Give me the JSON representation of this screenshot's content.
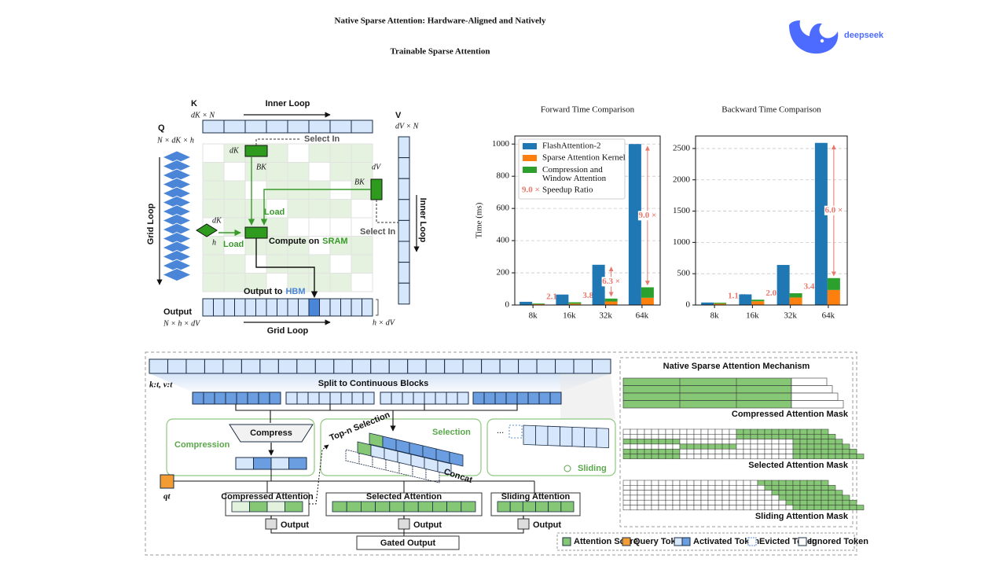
{
  "header": {
    "title_line1": "Native Sparse Attention: Hardware-Aligned and Natively",
    "title_line2": "Trainable Sparse Attention",
    "logo": "deepseek"
  },
  "kernel": {
    "k": "K",
    "k_dim": "dK × N",
    "inner_loop_top": "Inner Loop",
    "q": "Q",
    "q_dim": "N × dK × h",
    "select_in_k": "Select In",
    "dk_block": "dK",
    "bk_block": "BK",
    "dv_block": "dV",
    "bk_v": "BK",
    "v": "V",
    "v_dim": "dV × N",
    "inner_loop_side": "Inner Loop",
    "grid_loop_side": "Grid Loop",
    "load_kv": "Load",
    "dk_q": "dK",
    "h_q": "h",
    "load_q": "Load",
    "compute": "Compute on",
    "sram": "SRAM",
    "output_to": "Output to",
    "hbm": "HBM",
    "select_in_v": "Select In",
    "output": "Output",
    "output_dim": "N × h × dV",
    "grid_loop_bottom": "Grid Loop",
    "hd": "h × dV"
  },
  "chart_data": [
    {
      "type": "bar",
      "title": "Forward Time Comparison",
      "ylabel": "Time (ms)",
      "categories": [
        "8k",
        "16k",
        "32k",
        "64k"
      ],
      "series": [
        {
          "name": "FlashAttention-2",
          "color": "#1f77b4",
          "values": [
            20,
            65,
            250,
            1000
          ]
        },
        {
          "name": "Sparse Attention Kernel",
          "color": "#ff7f0e",
          "values": [
            5,
            8,
            22,
            45
          ]
        },
        {
          "name": "Compression and Window Attention",
          "color": "#2ca02c",
          "values": [
            4,
            9,
            18,
            65
          ]
        }
      ],
      "speedup": {
        "name": "Speedup Ratio",
        "color": "#e8776c",
        "values": [
          2.1,
          3.8,
          6.3,
          9.0
        ],
        "value_labels": [
          "2.1 ×",
          "3.8 ×",
          "6.3 ×",
          "9.0 ×"
        ]
      },
      "ylim": [
        0,
        1050
      ],
      "yticks": [
        0,
        200,
        400,
        600,
        800,
        1000
      ],
      "grid": true,
      "legend": "upper left"
    },
    {
      "type": "bar",
      "title": "Backward Time Comparison",
      "categories": [
        "8k",
        "16k",
        "32k",
        "64k"
      ],
      "series": [
        {
          "color": "#1f77b4",
          "values": [
            40,
            170,
            640,
            2590
          ]
        },
        {
          "color": "#ff7f0e",
          "values": [
            20,
            60,
            120,
            240
          ]
        },
        {
          "color": "#2ca02c",
          "values": [
            16,
            25,
            68,
            190
          ]
        }
      ],
      "speedup": {
        "color": "#e8776c",
        "values": [
          1.1,
          2.0,
          3.4,
          6.0
        ],
        "value_labels": [
          "1.1 ×",
          "2.0 ×",
          "3.4 ×",
          "6.0 ×"
        ]
      },
      "ylim": [
        0,
        2700
      ],
      "yticks": [
        0,
        500,
        1000,
        1500,
        2000,
        2500
      ],
      "grid": true
    }
  ],
  "mechanism": {
    "kv": "k:t, v:t",
    "split": "Split to Continuous Blocks",
    "compress": "Compress",
    "compression": "Compression",
    "top_n": "Top-n Selection",
    "selection": "Selection",
    "concat": "Concat",
    "ellipsis": "...",
    "sliding": "Sliding",
    "q": "qt",
    "compressed_attention": "Compressed Attention",
    "selected_attention": "Selected Attention",
    "sliding_attention": "Sliding Attention",
    "outputs": [
      "Output",
      "Output",
      "Output"
    ],
    "gated_output": "Gated Output",
    "panel_title": "Native Sparse Attention Mechanism",
    "masks": [
      "Compressed Attention Mask",
      "Selected Attention Mask",
      "Sliding Attention Mask"
    ],
    "legend": [
      "Attention Score",
      "Query Token",
      "Activated Token",
      "Evicted Token",
      "Ignored Token"
    ]
  }
}
